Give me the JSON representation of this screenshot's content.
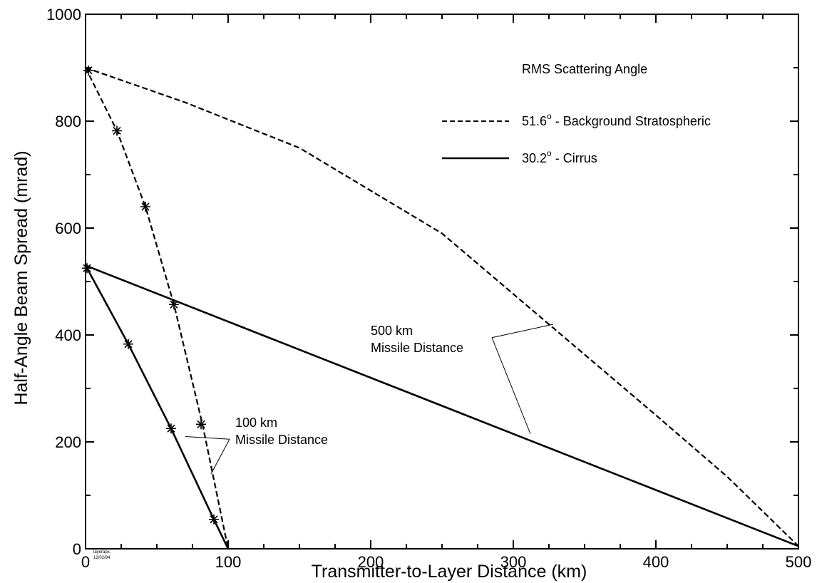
{
  "chart_data": {
    "type": "line",
    "title": "",
    "xlabel": "Transmitter-to-Layer Distance (km)",
    "ylabel": "Half-Angle Beam Spread (mrad)",
    "xlim": [
      0,
      500
    ],
    "ylim": [
      0,
      1000
    ],
    "x_ticks": [
      "0",
      "100",
      "200",
      "300",
      "400",
      "500"
    ],
    "y_ticks": [
      "0",
      "200",
      "400",
      "600",
      "800",
      "1000"
    ],
    "grid": false,
    "legend": {
      "title": "RMS Scattering Angle",
      "placement": "top-right",
      "entries": [
        {
          "angle": "51.6",
          "degree": "o",
          "description": "- Background Stratospheric",
          "style": "dashed"
        },
        {
          "angle": "30.2",
          "degree": "o",
          "description": "- Cirrus",
          "style": "solid"
        }
      ]
    },
    "series": [
      {
        "key": "strat_500",
        "style": "dashed",
        "points": [
          [
            0,
            900
          ],
          [
            70,
            835
          ],
          [
            150,
            750
          ],
          [
            250,
            590
          ],
          [
            325,
            420
          ],
          [
            400,
            250
          ],
          [
            450,
            135
          ],
          [
            500,
            5
          ]
        ]
      },
      {
        "key": "cirrus_500",
        "style": "solid",
        "points": [
          [
            0,
            530
          ],
          [
            500,
            5
          ]
        ]
      },
      {
        "key": "strat_100",
        "style": "dashed",
        "markers": "star",
        "points": [
          [
            0,
            900
          ],
          [
            22,
            782
          ],
          [
            42,
            640
          ],
          [
            62,
            457
          ],
          [
            82,
            233
          ],
          [
            100,
            0
          ]
        ],
        "marker_points": [
          [
            2,
            895
          ],
          [
            22,
            782
          ],
          [
            42,
            640
          ],
          [
            62,
            457
          ],
          [
            81,
            233
          ]
        ]
      },
      {
        "key": "cirrus_100",
        "style": "solid",
        "markers": "star",
        "points": [
          [
            0,
            530
          ],
          [
            30,
            383
          ],
          [
            60,
            225
          ],
          [
            90,
            55
          ],
          [
            100,
            0
          ]
        ],
        "marker_points": [
          [
            1,
            525
          ],
          [
            30,
            383
          ],
          [
            60,
            225
          ],
          [
            90,
            55
          ]
        ]
      }
    ],
    "annotations": [
      {
        "key": "ann_500",
        "lines": [
          "500 km",
          "Missile Distance"
        ],
        "text_at": [
          200,
          400
        ],
        "pointer_from": [
          285,
          395
        ],
        "pointer_to": [
          [
            328,
            420
          ],
          [
            312,
            215
          ]
        ]
      },
      {
        "key": "ann_100",
        "lines": [
          "100 km",
          "Missile Distance"
        ],
        "text_at": [
          105,
          228
        ],
        "pointer_from": [
          101,
          205
        ],
        "pointer_to": [
          [
            70,
            210
          ],
          [
            88,
            140
          ]
        ]
      }
    ],
    "stamp": [
      "layerapx.",
      "12/02/94"
    ]
  }
}
